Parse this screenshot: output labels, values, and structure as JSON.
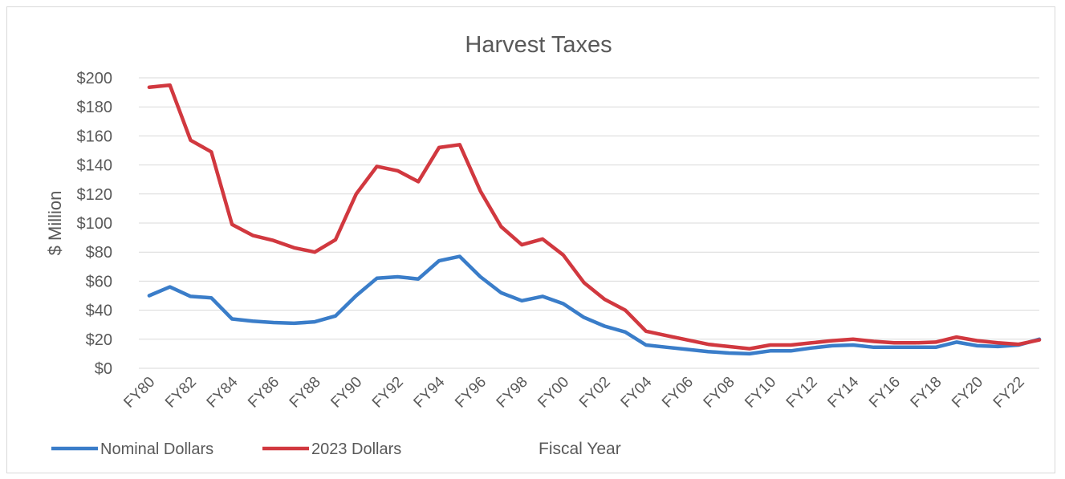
{
  "chart_data": {
    "type": "line",
    "title": "Harvest Taxes",
    "xlabel": "Fiscal Year",
    "ylabel": "$ Million",
    "ylim": [
      0,
      200
    ],
    "ytick_step": 20,
    "yticks": [
      "$0",
      "$20",
      "$40",
      "$60",
      "$80",
      "$100",
      "$120",
      "$140",
      "$160",
      "$180",
      "$200"
    ],
    "grid": true,
    "legend_position": "bottom-left",
    "categories": [
      "FY80",
      "FY81",
      "FY82",
      "FY83",
      "FY84",
      "FY85",
      "FY86",
      "FY87",
      "FY88",
      "FY89",
      "FY90",
      "FY91",
      "FY92",
      "FY93",
      "FY94",
      "FY95",
      "FY96",
      "FY97",
      "FY98",
      "FY99",
      "FY00",
      "FY01",
      "FY02",
      "FY03",
      "FY04",
      "FY05",
      "FY06",
      "FY07",
      "FY08",
      "FY09",
      "FY10",
      "FY11",
      "FY12",
      "FY13",
      "FY14",
      "FY15",
      "FY16",
      "FY17",
      "FY18",
      "FY19",
      "FY20",
      "FY21",
      "FY22",
      "FY23"
    ],
    "x_tick_labels": [
      "FY80",
      "FY82",
      "FY84",
      "FY86",
      "FY88",
      "FY90",
      "FY92",
      "FY94",
      "FY96",
      "FY98",
      "FY00",
      "FY02",
      "FY04",
      "FY06",
      "FY08",
      "FY10",
      "FY12",
      "FY14",
      "FY16",
      "FY18",
      "FY20",
      "FY22"
    ],
    "series": [
      {
        "name": "Nominal Dollars",
        "color": "#3a7dc9",
        "values": [
          50,
          56,
          49.5,
          48.5,
          34,
          32.5,
          31.5,
          31,
          32,
          36,
          50,
          62,
          63,
          61.5,
          74,
          77,
          63,
          52,
          46.5,
          49.5,
          44.5,
          35,
          29,
          25,
          16,
          14.5,
          13,
          11.5,
          10.5,
          10,
          12,
          12,
          14,
          15.5,
          16,
          14.5,
          14.5,
          14.5,
          14.5,
          18,
          15.5,
          15,
          16,
          20
        ]
      },
      {
        "name": "2023 Dollars",
        "color": "#d1383f",
        "values": [
          193.5,
          195,
          157,
          149,
          99,
          91.5,
          88,
          83,
          80,
          88.5,
          120,
          139,
          136,
          128.5,
          152,
          154,
          122,
          97.5,
          85,
          89,
          78,
          59,
          47.5,
          40,
          25.5,
          22.5,
          19.5,
          16.5,
          15,
          13.5,
          16,
          16,
          17.5,
          19,
          20,
          18.5,
          17.5,
          17.5,
          18,
          21.5,
          19,
          17.5,
          16.5,
          19.5
        ]
      }
    ]
  }
}
